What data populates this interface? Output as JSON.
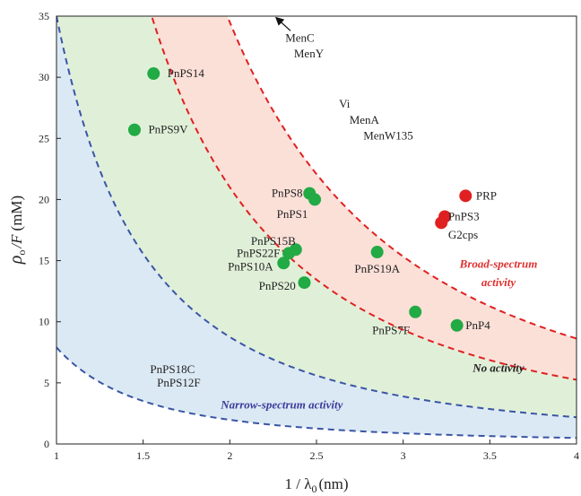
{
  "chart_data": {
    "type": "scatter",
    "xlabel": "1 / λ",
    "xlabel_sub": "0",
    "xlabel_unit": "(nm)",
    "ylabel": "ρ",
    "ylabel_sub": "o",
    "ylabel_rest": "/F",
    "ylabel_unit": "(mM)",
    "xlim": [
      1,
      4
    ],
    "ylim": [
      0,
      35
    ],
    "xticks": [
      1,
      1.5,
      2,
      2.5,
      3,
      3.5,
      4
    ],
    "yticks": [
      0,
      5,
      10,
      15,
      20,
      25,
      30,
      35
    ],
    "grid": false,
    "colors": {
      "narrow": "#dbe9f4",
      "middle": "#e0f0d8",
      "broad": "#fbe0d8",
      "blue_curve": "#3a55a5",
      "red_curve": "#e02020",
      "green_point": "#22aa44",
      "red_point": "#e02020"
    },
    "curves": [
      {
        "name": "lower boundary",
        "k": 7.9,
        "color_key": "blue_curve"
      },
      {
        "name": "narrow/no boundary",
        "k": 35,
        "color_key": "blue_curve"
      },
      {
        "name": "no/broad boundary",
        "k": 84,
        "color_key": "red_curve"
      },
      {
        "name": "upper boundary",
        "k": 138,
        "color_key": "red_curve"
      }
    ],
    "regions": [
      {
        "text": "Narrow-spectrum activity",
        "x": 2.3,
        "y": 3.2,
        "color": "#3b3b9b"
      },
      {
        "text": "No activity",
        "x": 3.55,
        "y": 6.2,
        "color": "#222222"
      },
      {
        "text": "Broad-spectrum",
        "x": 3.55,
        "y": 14.7,
        "color": "#e03030"
      },
      {
        "text": "activity",
        "x": 3.55,
        "y": 13.2,
        "color": "#e03030"
      }
    ],
    "points": [
      {
        "label": "PnPS14",
        "x": 1.56,
        "y": 30.3,
        "color": "green",
        "lx": 1.64,
        "ly": 30.3,
        "anchor": "start"
      },
      {
        "label": "PnPS9V",
        "x": 1.45,
        "y": 25.7,
        "color": "green",
        "lx": 1.53,
        "ly": 25.7,
        "anchor": "start"
      },
      {
        "label": "PnPS8",
        "x": 2.46,
        "y": 20.5,
        "color": "green",
        "lx": 2.42,
        "ly": 20.5,
        "anchor": "end"
      },
      {
        "label": "PnPS1",
        "x": 2.49,
        "y": 20.0,
        "color": "green",
        "lx": 2.45,
        "ly": 18.8,
        "anchor": "end"
      },
      {
        "label": "PnPS15B",
        "x": 2.38,
        "y": 15.9,
        "color": "green",
        "lx": 2.38,
        "ly": 16.6,
        "anchor": "end"
      },
      {
        "label": "PnPS22F",
        "x": 2.34,
        "y": 15.6,
        "color": "green",
        "lx": 2.29,
        "ly": 15.6,
        "anchor": "end"
      },
      {
        "label": "PnPS10A",
        "x": 2.31,
        "y": 14.8,
        "color": "green",
        "lx": 2.25,
        "ly": 14.5,
        "anchor": "end"
      },
      {
        "label": "PnPS20",
        "x": 2.43,
        "y": 13.2,
        "color": "green",
        "lx": 2.38,
        "ly": 12.9,
        "anchor": "end"
      },
      {
        "label": "PnPS19A",
        "x": 2.85,
        "y": 15.7,
        "color": "green",
        "lx": 2.85,
        "ly": 14.3,
        "anchor": "middle"
      },
      {
        "label": "PnPS7F",
        "x": 3.07,
        "y": 10.8,
        "color": "green",
        "lx": 2.93,
        "ly": 9.3,
        "anchor": "middle"
      },
      {
        "label": "PnP4",
        "x": 3.31,
        "y": 9.7,
        "color": "green",
        "lx": 3.36,
        "ly": 9.7,
        "anchor": "start"
      },
      {
        "label": "PRP",
        "x": 3.36,
        "y": 20.3,
        "color": "red",
        "lx": 3.42,
        "ly": 20.3,
        "anchor": "start"
      },
      {
        "label": "PnPS3",
        "x": 3.24,
        "y": 18.6,
        "color": "red",
        "lx": 3.26,
        "ly": 18.6,
        "anchor": "start"
      },
      {
        "label": "G2cps",
        "x": 3.22,
        "y": 18.1,
        "color": "red",
        "lx": 3.26,
        "ly": 17.1,
        "anchor": "start"
      }
    ],
    "annotations": [
      {
        "text": "MenC",
        "x": 2.32,
        "y": 33.2,
        "anchor": "start"
      },
      {
        "text": "MenY",
        "x": 2.37,
        "y": 31.9,
        "anchor": "start"
      },
      {
        "text": "Vi",
        "x": 2.63,
        "y": 27.8,
        "anchor": "start"
      },
      {
        "text": "MenA",
        "x": 2.69,
        "y": 26.5,
        "anchor": "start"
      },
      {
        "text": "MenW135",
        "x": 2.77,
        "y": 25.2,
        "anchor": "start"
      },
      {
        "text": "PnPS18C",
        "x": 1.54,
        "y": 6.1,
        "anchor": "start"
      },
      {
        "text": "PnPS12F",
        "x": 1.58,
        "y": 5.0,
        "anchor": "start"
      }
    ],
    "arrow": {
      "from": [
        2.35,
        33.8
      ],
      "to": [
        2.28,
        35.0
      ]
    }
  }
}
